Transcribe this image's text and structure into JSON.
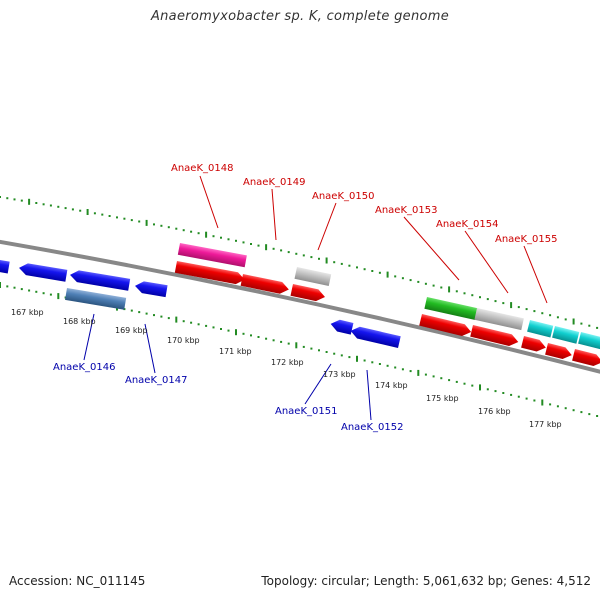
{
  "title": "Anaeromyxobacter sp. K, complete genome",
  "footer": {
    "accession": "Accession: NC_011145",
    "summary": "Topology: circular; Length: 5,061,632 bp; Genes: 4,512"
  },
  "colors": {
    "backbone": "#888888",
    "dots": "#228b22",
    "forward_label": "#cc0000",
    "reverse_label": "#0000aa"
  },
  "scale_labels": [
    "167 kbp",
    "168 kbp",
    "169 kbp",
    "170 kbp",
    "171 kbp",
    "172 kbp",
    "173 kbp",
    "174 kbp",
    "175 kbp",
    "176 kbp",
    "177 kbp"
  ],
  "forward_labels": [
    "AnaeK_0148",
    "AnaeK_0149",
    "AnaeK_0150",
    "AnaeK_0153",
    "AnaeK_0154",
    "AnaeK_0155"
  ],
  "reverse_labels": [
    "AnaeK_0146",
    "AnaeK_0147",
    "AnaeK_0151",
    "AnaeK_0152"
  ]
}
